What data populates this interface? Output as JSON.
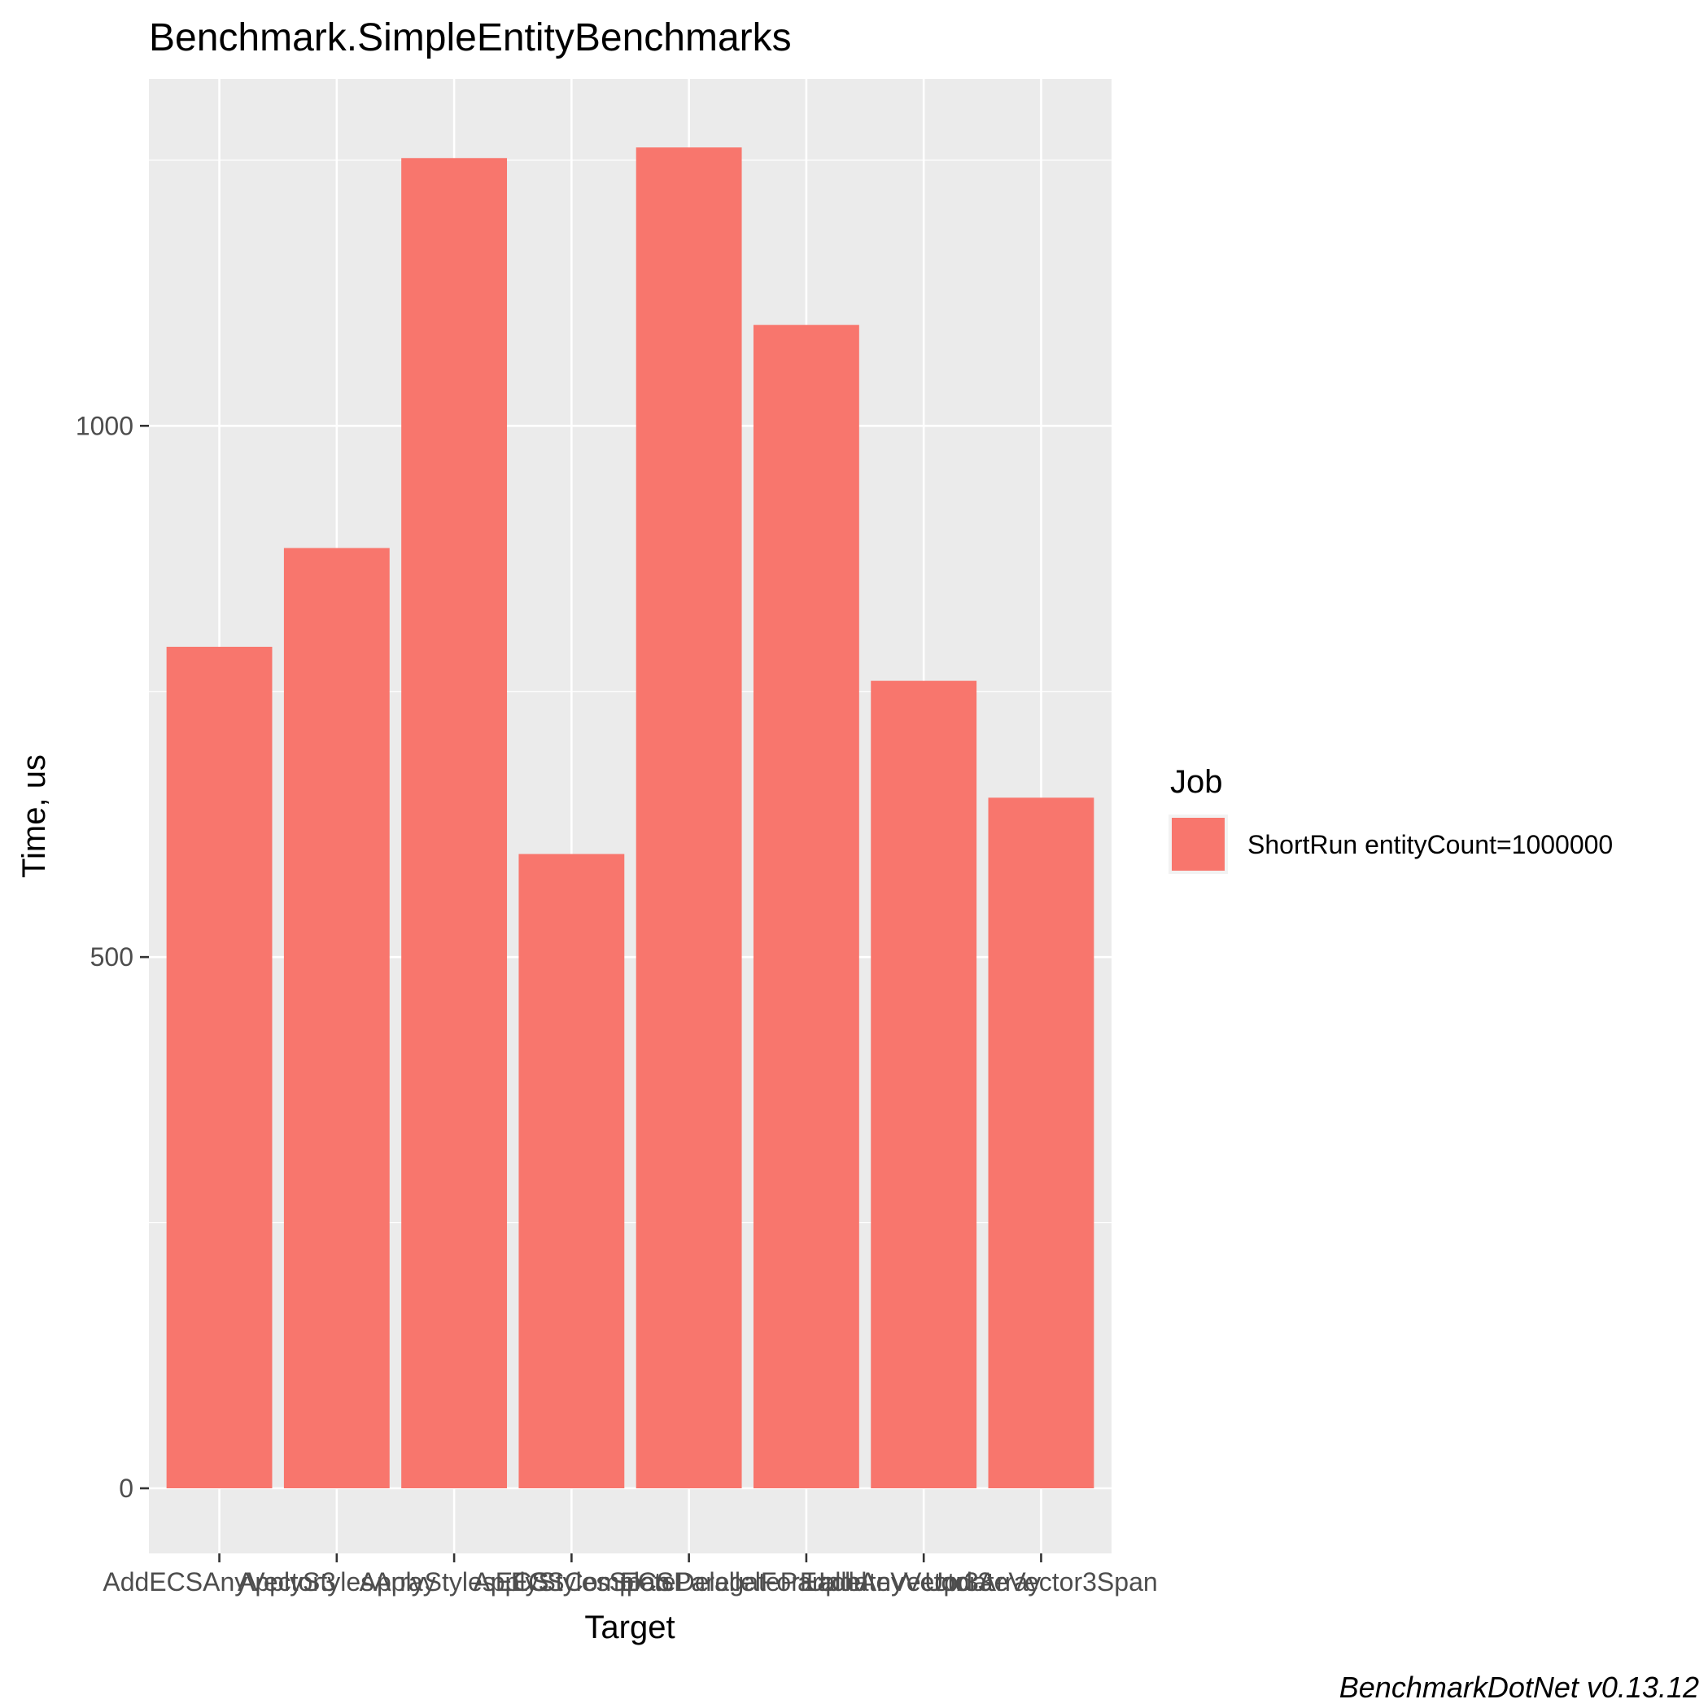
{
  "chart_data": {
    "type": "bar",
    "title": "Benchmark.SimpleEntityBenchmarks",
    "xlabel": "Target",
    "ylabel": "Time, us",
    "categories": [
      "AddECSAnyVector3",
      "ApplyStylesArray",
      "ApplyStylesECS",
      "ApplyStylesSpan",
      "ECSCompleteDelegateParallel",
      "ECSParallelForEachAnyVector3",
      "UpdateVector3Array",
      "UpdateVector3Span"
    ],
    "series": [
      {
        "name": "ShortRun entityCount=1000000",
        "values": [
          792,
          885,
          1252,
          597,
          1262,
          1095,
          760,
          650
        ]
      }
    ],
    "ylim": [
      -57,
      1330
    ],
    "yticks": [
      0,
      500,
      1000
    ],
    "ytick_labels": [
      "0",
      "500",
      "1000"
    ],
    "grid": true,
    "legend": {
      "title": "Job",
      "position": "right"
    },
    "colors": {
      "bar": "#F8766D",
      "panel": "#EBEBEB",
      "grid": "#FFFFFF"
    }
  },
  "caption": "BenchmarkDotNet v0.13.12"
}
